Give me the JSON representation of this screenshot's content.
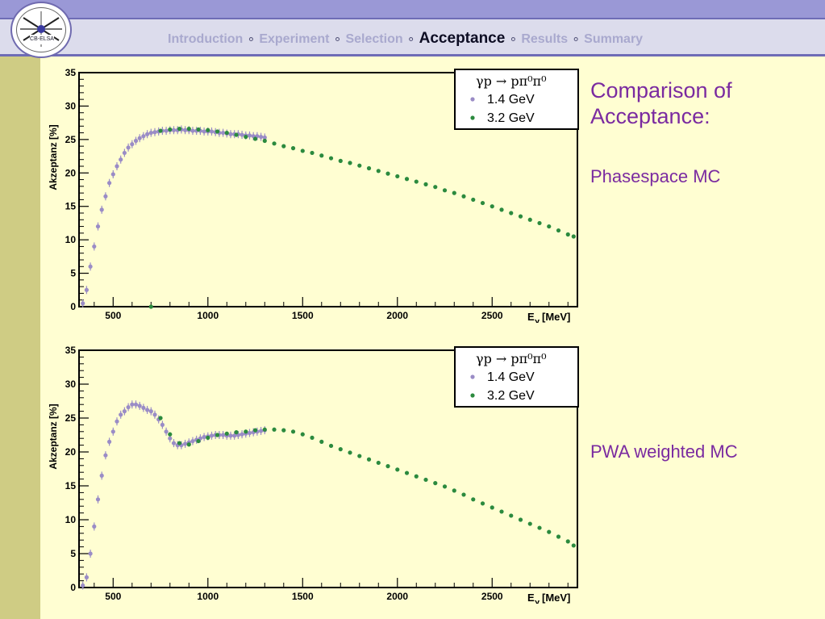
{
  "nav": {
    "items": [
      "Introduction",
      "Experiment",
      "Selection",
      "Acceptance",
      "Results",
      "Summary"
    ],
    "active_index": 3,
    "separator": "∘"
  },
  "logo": {
    "text": "CB-ELSA"
  },
  "side": {
    "title": "Comparison of Acceptance:",
    "subtitle_top": "Phasespace MC",
    "subtitle_bottom": "PWA weighted MC"
  },
  "colors": {
    "series_14": "#9a8cc6",
    "series_32": "#2b8a3e",
    "background": "#fffed2",
    "sidebar": "#cfcc84",
    "header_band": "#9a98d6"
  },
  "chart_data": [
    {
      "type": "scatter",
      "ylabel": "Akzeptanz [%]",
      "xlabel": "E",
      "xlabel_sub": "γ",
      "xlabel_unit": "[MeV]",
      "xlim": [
        320,
        2950
      ],
      "ylim": [
        0,
        35
      ],
      "xticks": [
        500,
        1000,
        1500,
        2000,
        2500
      ],
      "yticks": [
        0,
        5,
        10,
        15,
        20,
        25,
        30,
        35
      ],
      "legend": {
        "title": "γp → pπ⁰π⁰",
        "position": "top-right"
      },
      "series": [
        {
          "name": "1.4 GeV",
          "color": "#9a8cc6",
          "x": [
            340,
            360,
            380,
            400,
            420,
            440,
            460,
            480,
            500,
            520,
            540,
            560,
            580,
            600,
            620,
            640,
            660,
            680,
            700,
            720,
            740,
            760,
            780,
            800,
            820,
            840,
            860,
            880,
            900,
            920,
            940,
            960,
            980,
            1000,
            1020,
            1040,
            1060,
            1080,
            1100,
            1120,
            1140,
            1160,
            1180,
            1200,
            1220,
            1240,
            1260,
            1280,
            1300
          ],
          "y": [
            0.5,
            2.5,
            6,
            9,
            12,
            14.5,
            16.5,
            18.5,
            19.8,
            21,
            22,
            23,
            23.8,
            24.3,
            24.8,
            25.2,
            25.5,
            25.8,
            26,
            26.1,
            26.2,
            26.3,
            26.3,
            26.4,
            26.4,
            26.4,
            26.5,
            26.4,
            26.4,
            26.3,
            26.3,
            26.3,
            26.2,
            26.2,
            26.2,
            26.1,
            26,
            26,
            25.9,
            25.8,
            25.8,
            25.8,
            25.7,
            25.6,
            25.6,
            25.5,
            25.5,
            25.4,
            25.3
          ]
        },
        {
          "name": "3.2 GeV",
          "color": "#2b8a3e",
          "x": [
            700,
            750,
            800,
            850,
            900,
            950,
            1000,
            1050,
            1100,
            1150,
            1200,
            1250,
            1300,
            1350,
            1400,
            1450,
            1500,
            1550,
            1600,
            1650,
            1700,
            1750,
            1800,
            1850,
            1900,
            1950,
            2000,
            2050,
            2100,
            2150,
            2200,
            2250,
            2300,
            2350,
            2400,
            2450,
            2500,
            2550,
            2600,
            2650,
            2700,
            2750,
            2800,
            2850,
            2900,
            2930
          ],
          "y": [
            0,
            26.3,
            26.5,
            26.6,
            26.6,
            26.5,
            26.4,
            26.2,
            26.0,
            25.7,
            25.4,
            25.1,
            24.8,
            24.4,
            24.0,
            23.7,
            23.3,
            23.0,
            22.6,
            22.2,
            21.8,
            21.5,
            21.1,
            20.7,
            20.3,
            19.9,
            19.5,
            19.1,
            18.7,
            18.3,
            17.9,
            17.4,
            17.0,
            16.5,
            16.0,
            15.5,
            15.0,
            14.5,
            14.0,
            13.5,
            13.0,
            12.5,
            12.0,
            11.4,
            10.8,
            10.5
          ]
        }
      ]
    },
    {
      "type": "scatter",
      "ylabel": "Akzeptanz [%]",
      "xlabel": "E",
      "xlabel_sub": "γ",
      "xlabel_unit": "[MeV]",
      "xlim": [
        320,
        2950
      ],
      "ylim": [
        0,
        35
      ],
      "xticks": [
        500,
        1000,
        1500,
        2000,
        2500
      ],
      "yticks": [
        0,
        5,
        10,
        15,
        20,
        25,
        30,
        35
      ],
      "legend": {
        "title": "γp → pπ⁰π⁰",
        "position": "top-right"
      },
      "series": [
        {
          "name": "1.4 GeV",
          "color": "#9a8cc6",
          "x": [
            340,
            360,
            380,
            400,
            420,
            440,
            460,
            480,
            500,
            520,
            540,
            560,
            580,
            600,
            620,
            640,
            660,
            680,
            700,
            720,
            740,
            760,
            780,
            800,
            820,
            840,
            860,
            880,
            900,
            920,
            940,
            960,
            980,
            1000,
            1020,
            1040,
            1060,
            1080,
            1100,
            1120,
            1140,
            1160,
            1180,
            1200,
            1220,
            1240,
            1260,
            1280,
            1300
          ],
          "y": [
            0.3,
            1.5,
            5,
            9,
            13,
            16.5,
            19.5,
            21.5,
            23,
            24.5,
            25.5,
            26,
            26.6,
            27,
            27,
            26.8,
            26.5,
            26.2,
            26,
            25.5,
            24.8,
            24,
            23,
            22,
            21.3,
            21,
            21,
            21.2,
            21.4,
            21.6,
            21.8,
            22,
            22.2,
            22.3,
            22.4,
            22.5,
            22.5,
            22.5,
            22.4,
            22.4,
            22.4,
            22.5,
            22.6,
            22.7,
            22.8,
            22.9,
            23,
            23.1,
            23.2
          ]
        },
        {
          "name": "3.2 GeV",
          "color": "#2b8a3e",
          "x": [
            750,
            800,
            850,
            900,
            950,
            1000,
            1050,
            1100,
            1150,
            1200,
            1250,
            1300,
            1350,
            1400,
            1450,
            1500,
            1550,
            1600,
            1650,
            1700,
            1750,
            1800,
            1850,
            1900,
            1950,
            2000,
            2050,
            2100,
            2150,
            2200,
            2250,
            2300,
            2350,
            2400,
            2450,
            2500,
            2550,
            2600,
            2650,
            2700,
            2750,
            2800,
            2850,
            2900,
            2930
          ],
          "y": [
            25.0,
            22.6,
            21.3,
            21.1,
            21.6,
            22.1,
            22.5,
            22.7,
            22.9,
            23.0,
            23.2,
            23.3,
            23.3,
            23.2,
            23.0,
            22.6,
            22.1,
            21.5,
            20.9,
            20.4,
            19.9,
            19.4,
            18.9,
            18.4,
            17.9,
            17.4,
            16.9,
            16.4,
            15.9,
            15.4,
            14.9,
            14.3,
            13.7,
            13.0,
            12.4,
            11.8,
            11.2,
            10.6,
            10.0,
            9.4,
            8.8,
            8.2,
            7.5,
            6.8,
            6.2
          ]
        }
      ]
    }
  ]
}
